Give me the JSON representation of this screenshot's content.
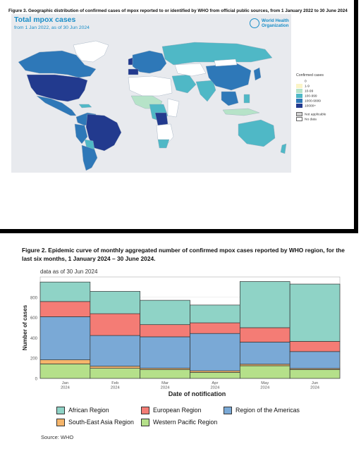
{
  "figure3": {
    "caption": "Figure 3. Geographic distribution of confirmed cases of mpox reported to or identified by WHO from official public sources, from 1 January 2022 to 30 June 2024",
    "map_title": "Total mpox cases",
    "map_subtitle": "from 1 Jan 2022, as of 30 Jun 2024",
    "who_logo_text_1": "World Health",
    "who_logo_text_2": "Organization",
    "legend_title": "Confirmed cases",
    "legend": [
      {
        "label": "0",
        "color": "#ffffff"
      },
      {
        "label": "1-9",
        "color": "#fbf4c6"
      },
      {
        "label": "10-99",
        "color": "#b6e3c8"
      },
      {
        "label": "100-999",
        "color": "#4fb8c6"
      },
      {
        "label": "1000-9999",
        "color": "#2e78b8"
      },
      {
        "label": "10000+",
        "color": "#223a8e"
      }
    ],
    "legend_extra": [
      {
        "label": "Not applicable",
        "color": "#cfcfcf"
      },
      {
        "label": "No data",
        "color": "#ffffff"
      }
    ]
  },
  "figure2": {
    "caption": "Figure 2. Epidemic curve of monthly aggregated number of confirmed mpox cases reported by WHO region, for the last six months, 1 January 2024 – 30 June 2024.",
    "source": "Source: WHO"
  },
  "chart_data": {
    "type": "bar",
    "stacked": true,
    "subtitle": "data as of 30 Jun 2024",
    "xlabel": "Date of notification",
    "ylabel": "Number of cases",
    "ylim": [
      0,
      1000
    ],
    "yticks": [
      0,
      200,
      400,
      600,
      800
    ],
    "categories": [
      "Jan\n2024",
      "Feb\n2024",
      "Mar\n2024",
      "Apr\n2024",
      "May\n2024",
      "Jun\n2024"
    ],
    "legend_position": "bottom",
    "series": [
      {
        "name": "Western Pacific Region",
        "color": "#b5e08a",
        "values": [
          143,
          100,
          88,
          60,
          125,
          88
        ]
      },
      {
        "name": "South-East Asia Region",
        "color": "#f5b56b",
        "values": [
          40,
          20,
          12,
          15,
          15,
          10
        ]
      },
      {
        "name": "Region of the Americas",
        "color": "#7aa9d6",
        "values": [
          425,
          303,
          310,
          368,
          218,
          167
        ]
      },
      {
        "name": "European Region",
        "color": "#f47c75",
        "values": [
          150,
          215,
          120,
          105,
          142,
          100
        ]
      },
      {
        "name": "African Region",
        "color": "#8fd3c6",
        "values": [
          192,
          220,
          240,
          175,
          455,
          565
        ]
      }
    ]
  }
}
